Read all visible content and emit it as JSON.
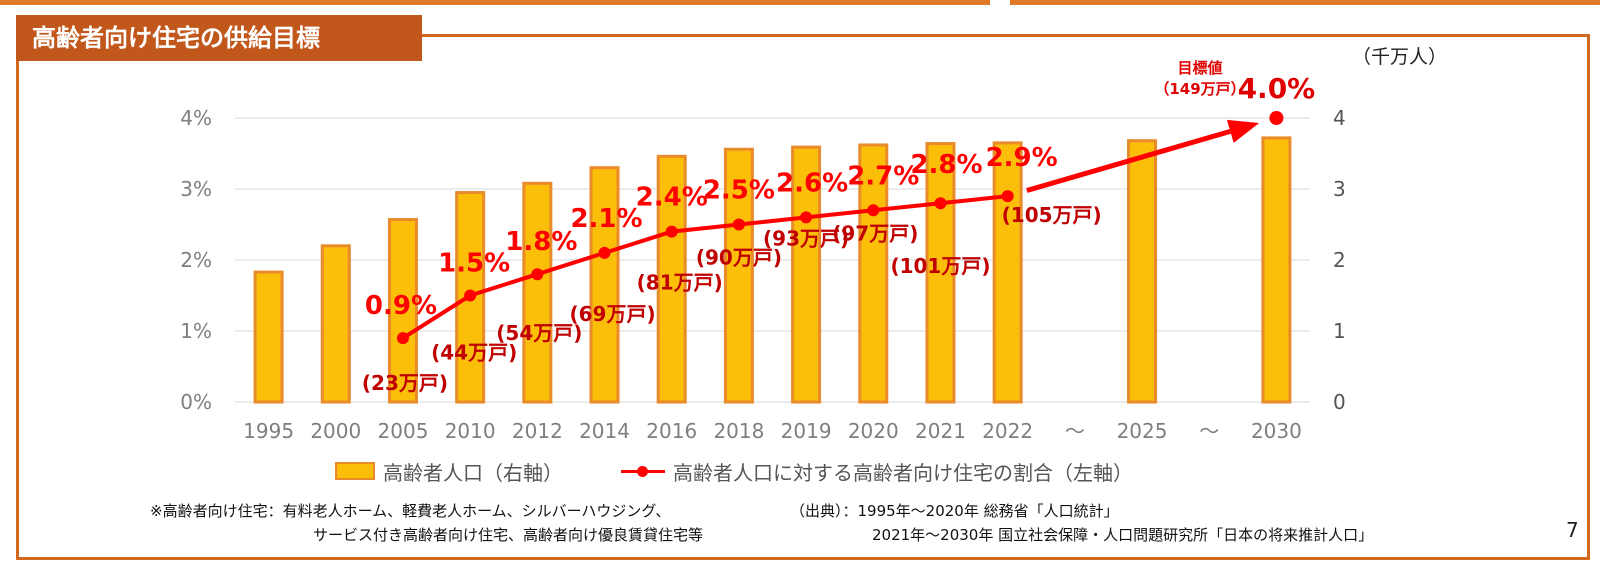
{
  "slide": {
    "title": "高齢者向け住宅の供給目標",
    "page_number": "7"
  },
  "chart_data": {
    "type": "bar+line",
    "categories": [
      "1995",
      "2000",
      "2005",
      "2010",
      "2012",
      "2014",
      "2016",
      "2018",
      "2019",
      "2020",
      "2021",
      "2022",
      "～",
      "2025",
      "～",
      "2030"
    ],
    "right_axis": {
      "unit": "（千万人）",
      "range": [
        0,
        4
      ],
      "ticks": [
        "0",
        "1",
        "2",
        "3",
        "4"
      ]
    },
    "left_axis": {
      "range": [
        0,
        4
      ],
      "ticks": [
        "0%",
        "1%",
        "2%",
        "3%",
        "4%"
      ]
    },
    "series": [
      {
        "name": "高齢者人口（右軸）",
        "type": "bar",
        "axis": "right",
        "values": [
          1.83,
          2.2,
          2.57,
          2.95,
          3.08,
          3.3,
          3.46,
          3.56,
          3.59,
          3.62,
          3.64,
          3.65,
          null,
          3.68,
          null,
          3.72
        ]
      },
      {
        "name": "高齢者人口に対する高齢者向け住宅の割合（左軸）",
        "type": "line",
        "axis": "left",
        "values": [
          null,
          null,
          0.9,
          1.5,
          1.8,
          2.1,
          2.4,
          2.5,
          2.6,
          2.7,
          2.8,
          2.9,
          null,
          null,
          null,
          4.0
        ],
        "pct_labels": [
          "",
          "",
          "0.9%",
          "1.5%",
          "1.8%",
          "2.1%",
          "2.4%",
          "2.5%",
          "2.6%",
          "2.7%",
          "2.8%",
          "2.9%",
          "",
          "",
          "",
          "4.0%"
        ],
        "count_labels": [
          "",
          "",
          "(23万戸)",
          "(44万戸)",
          "(54万戸)",
          "(69万戸)",
          "(81万戸)",
          "(90万戸)",
          "(93万戸)",
          "(97万戸)",
          "(101万戸)",
          "(105万戸)",
          "",
          "",
          "",
          ""
        ]
      }
    ],
    "target_label": "目標値",
    "target_sub": "（149万戸）"
  },
  "legend": {
    "bar": "高齢者人口（右軸）",
    "line": "高齢者人口に対する高齢者向け住宅の割合（左軸）"
  },
  "notes": {
    "left_line1": "※高齢者向け住宅：有料老人ホーム、軽費老人ホーム、シルバーハウジング、",
    "left_line2": "サービス付き高齢者向け住宅、高齢者向け優良賃貸住宅等",
    "right_line1": "（出典）：1995年～2020年 総務省「人口統計」",
    "right_line2": "2021年～2030年 国立社会保障・人口問題研究所「日本の将来推計人口」"
  },
  "colors": {
    "bar_fill": "#fbbf0a",
    "bar_border": "#e98b2a",
    "line": "#ff0000",
    "title_bg": "#c1571a",
    "frame": "#d2691e"
  }
}
